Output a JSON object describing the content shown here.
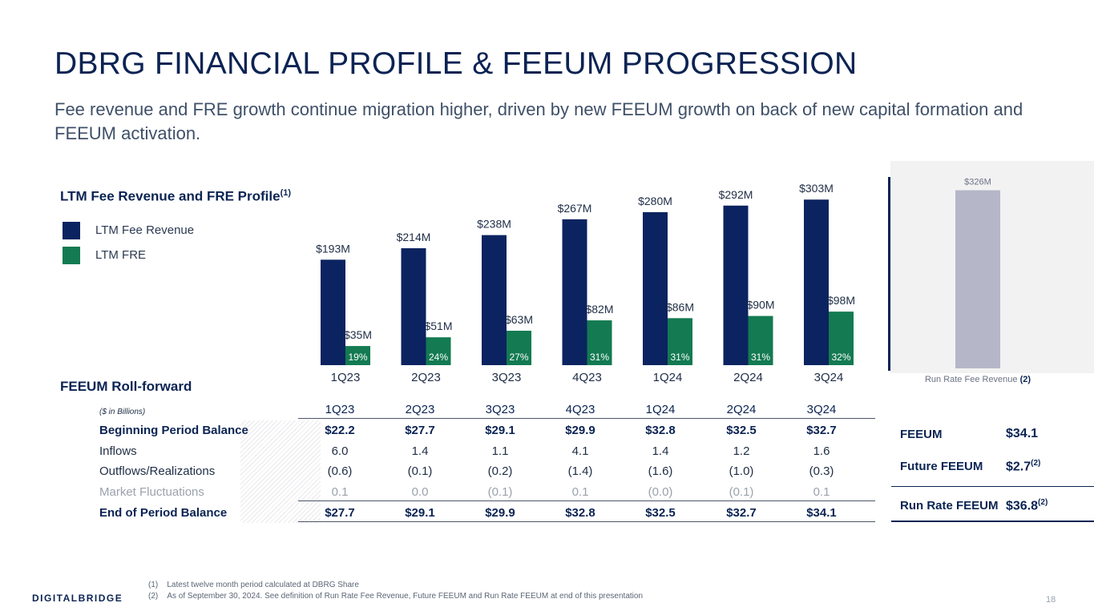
{
  "title": "DBRG FINANCIAL PROFILE & FEEUM PROGRESSION",
  "subtitle": "Fee revenue and FRE growth continue migration higher, driven by new FEEUM growth on back of new capital formation and FEEUM activation.",
  "profile": {
    "heading": "LTM Fee Revenue and FRE Profile",
    "heading_sup": "(1)",
    "legend": [
      {
        "label": "LTM Fee Revenue",
        "color": "#0b2360"
      },
      {
        "label": "LTM FRE",
        "color": "#137a52"
      }
    ]
  },
  "chart_data": {
    "type": "bar",
    "title": "LTM Fee Revenue and FRE Profile",
    "categories": [
      "1Q23",
      "2Q23",
      "3Q23",
      "4Q23",
      "1Q24",
      "2Q24",
      "3Q24"
    ],
    "series": [
      {
        "name": "LTM Fee Revenue",
        "values": [
          193,
          214,
          238,
          267,
          280,
          292,
          303
        ],
        "labels": [
          "$193M",
          "$214M",
          "$238M",
          "$267M",
          "$280M",
          "$292M",
          "$303M"
        ],
        "color": "#0b2360"
      },
      {
        "name": "LTM FRE",
        "values": [
          35,
          51,
          63,
          82,
          86,
          90,
          98
        ],
        "labels": [
          "$35M",
          "$51M",
          "$63M",
          "$82M",
          "$86M",
          "$90M",
          "$98M"
        ],
        "color": "#137a52"
      }
    ],
    "margins": [
      "19%",
      "24%",
      "27%",
      "31%",
      "31%",
      "31%",
      "32%"
    ],
    "ylabel": "",
    "xlabel": "",
    "ylim": [
      0,
      340
    ]
  },
  "run_rate": {
    "value": 326,
    "label": "$326M",
    "caption": "Run Rate Fee Revenue",
    "caption_sup": "(2)",
    "color": "#b5b7c8"
  },
  "rollforward": {
    "heading": "FEEUM Roll-forward",
    "unit_note": "($ in Billions)",
    "columns": [
      "1Q23",
      "2Q23",
      "3Q23",
      "4Q23",
      "1Q24",
      "2Q24",
      "3Q24"
    ],
    "rows": [
      {
        "label": "Beginning Period Balance",
        "values": [
          "$22.2",
          "$27.7",
          "$29.1",
          "$29.9",
          "$32.8",
          "$32.5",
          "$32.7"
        ]
      },
      {
        "label": "Inflows",
        "values": [
          "6.0",
          "1.4",
          "1.1",
          "4.1",
          "1.4",
          "1.2",
          "1.6"
        ]
      },
      {
        "label": "Outflows/Realizations",
        "values": [
          "(0.6)",
          "(0.1)",
          "(0.2)",
          "(1.4)",
          "(1.6)",
          "(1.0)",
          "(0.3)"
        ]
      },
      {
        "label": "Market Fluctuations",
        "values": [
          "0.1",
          "0.0",
          "(0.1)",
          "0.1",
          "(0.0)",
          "(0.1)",
          "0.1"
        ]
      },
      {
        "label": "End of Period Balance",
        "values": [
          "$27.7",
          "$29.1",
          "$29.9",
          "$32.8",
          "$32.5",
          "$32.7",
          "$34.1"
        ]
      }
    ]
  },
  "summary": {
    "feeum_label": "FEEUM",
    "feeum_value": "$34.1",
    "future_label": "Future FEEUM",
    "future_value": "$2.7",
    "future_sup": "(2)",
    "runrate_label": "Run Rate FEEUM",
    "runrate_value": "$36.8",
    "runrate_sup": "(2)"
  },
  "footnotes": {
    "n1_marker": "(1)",
    "n1": "Latest twelve month period calculated at DBRG Share",
    "n2_marker": "(2)",
    "n2": "As of September 30, 2024. See definition of Run Rate Fee Revenue, Future FEEUM and Run Rate FEEUM at end of this presentation"
  },
  "brand": "DIGITALBRIDGE",
  "page_number": "18"
}
